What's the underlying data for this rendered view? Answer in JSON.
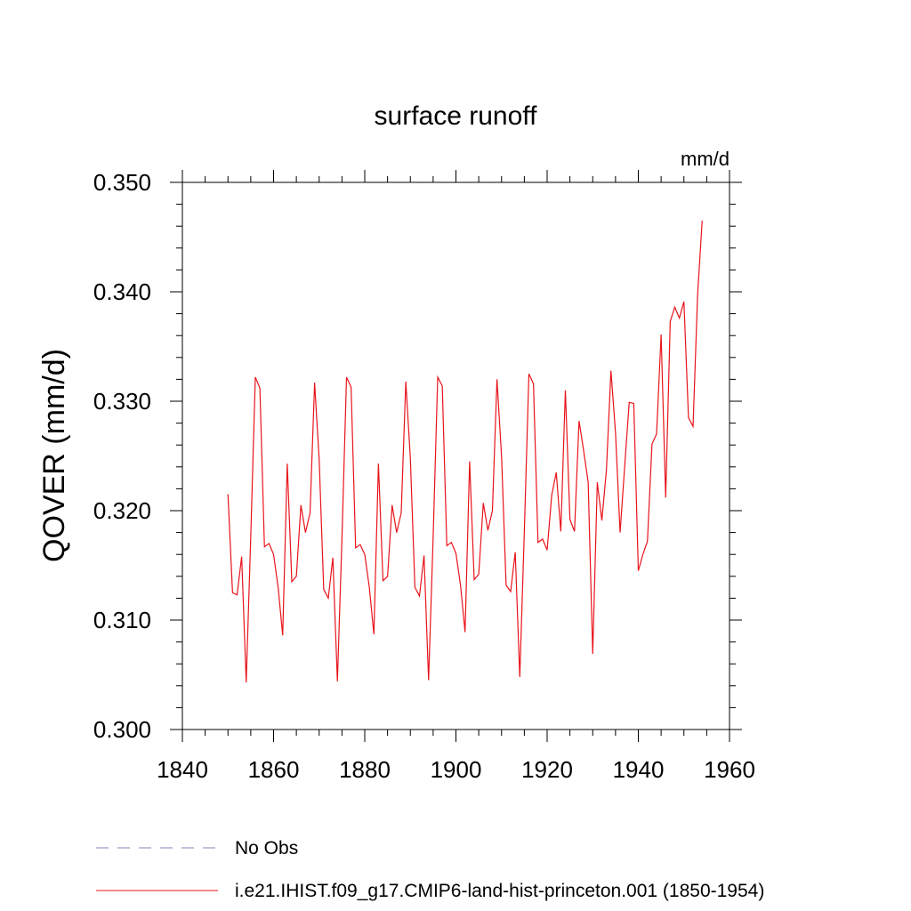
{
  "chart_data": {
    "type": "line",
    "title": "surface runoff",
    "units": "mm/d",
    "ylabel": "QOVER  (mm/d)",
    "xlabel": "",
    "xlim": [
      1840,
      1960
    ],
    "ylim": [
      0.3,
      0.35
    ],
    "x_ticks": [
      "1840",
      "1860",
      "1880",
      "1900",
      "1920",
      "1940",
      "1960"
    ],
    "y_ticks": [
      "0.300",
      "0.310",
      "0.320",
      "0.330",
      "0.340",
      "0.350"
    ],
    "grid": false,
    "legend_position": "bottom",
    "series": [
      {
        "name": "No Obs",
        "color": "#8a7fb8",
        "style": "dashed",
        "x": [],
        "values": []
      },
      {
        "name": "i.e21.IHIST.f09_g17.CMIP6-land-hist-princeton.001 (1850-1954)",
        "color": "#e8141b",
        "style": "solid",
        "x": [
          1850,
          1851,
          1852,
          1853,
          1854,
          1855,
          1856,
          1857,
          1858,
          1859,
          1860,
          1861,
          1862,
          1863,
          1864,
          1865,
          1866,
          1867,
          1868,
          1869,
          1870,
          1871,
          1872,
          1873,
          1874,
          1875,
          1876,
          1877,
          1878,
          1879,
          1880,
          1881,
          1882,
          1883,
          1884,
          1885,
          1886,
          1887,
          1888,
          1889,
          1890,
          1891,
          1892,
          1893,
          1894,
          1895,
          1896,
          1897,
          1898,
          1899,
          1900,
          1901,
          1902,
          1903,
          1904,
          1905,
          1906,
          1907,
          1908,
          1909,
          1910,
          1911,
          1912,
          1913,
          1914,
          1915,
          1916,
          1917,
          1918,
          1919,
          1920,
          1921,
          1922,
          1923,
          1924,
          1925,
          1926,
          1927,
          1928,
          1929,
          1930,
          1931,
          1932,
          1933,
          1934,
          1935,
          1936,
          1937,
          1938,
          1939,
          1940,
          1941,
          1942,
          1943,
          1944,
          1945,
          1946,
          1947,
          1948,
          1949,
          1950,
          1951,
          1952,
          1953,
          1954
        ],
        "values": [
          0.3215,
          0.3125,
          0.3123,
          0.3158,
          0.3043,
          0.3177,
          0.3322,
          0.3312,
          0.3167,
          0.317,
          0.316,
          0.313,
          0.3086,
          0.3243,
          0.3135,
          0.314,
          0.3205,
          0.318,
          0.3198,
          0.3317,
          0.3247,
          0.3128,
          0.312,
          0.3157,
          0.3044,
          0.3175,
          0.3322,
          0.3313,
          0.3166,
          0.3169,
          0.316,
          0.313,
          0.3087,
          0.3243,
          0.3136,
          0.314,
          0.3205,
          0.318,
          0.3198,
          0.3318,
          0.3248,
          0.313,
          0.3122,
          0.3159,
          0.3045,
          0.3176,
          0.3322,
          0.3314,
          0.3168,
          0.3171,
          0.3161,
          0.3132,
          0.3089,
          0.3245,
          0.3137,
          0.3142,
          0.3207,
          0.3182,
          0.32,
          0.332,
          0.325,
          0.3132,
          0.3126,
          0.3162,
          0.3048,
          0.3181,
          0.3325,
          0.3316,
          0.3171,
          0.3174,
          0.3164,
          0.3214,
          0.3235,
          0.3181,
          0.331,
          0.3192,
          0.3181,
          0.3282,
          0.3255,
          0.3226,
          0.3069,
          0.3226,
          0.3191,
          0.3237,
          0.3328,
          0.3271,
          0.318,
          0.324,
          0.3299,
          0.3298,
          0.3145,
          0.316,
          0.3172,
          0.3261,
          0.327,
          0.3361,
          0.3212,
          0.3373,
          0.3386,
          0.3376,
          0.3391,
          0.3285,
          0.3277,
          0.3397,
          0.3465
        ]
      }
    ]
  }
}
